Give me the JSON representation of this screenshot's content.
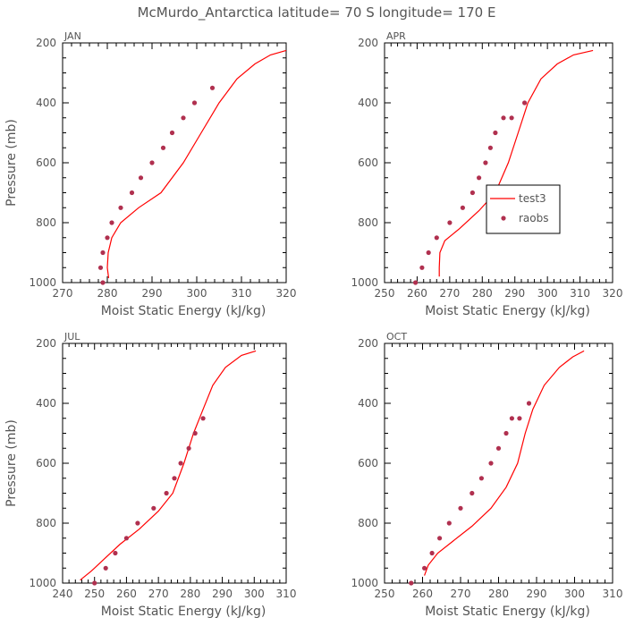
{
  "title": "McMurdo_Antarctica   latitude= 70 S longitude= 170 E",
  "legend": {
    "line_label": "test3",
    "dot_label": "raobs",
    "line_color": "#ff0000",
    "dot_color": "#b0304f"
  },
  "chart_data": [
    {
      "type": "line+scatter",
      "panel": "JAN",
      "xlabel": "Moist Static Energy (kJ/kg)",
      "ylabel": "Pressure (mb)",
      "xlim": [
        270,
        320
      ],
      "ylim": [
        200,
        1000
      ],
      "xticks": [
        270,
        280,
        290,
        300,
        310,
        320
      ],
      "yticks": [
        200,
        400,
        600,
        800,
        1000
      ],
      "series": [
        {
          "name": "test3",
          "kind": "line",
          "x": [
            280.3,
            280.0,
            280.2,
            281.0,
            283.0,
            287.0,
            292.0,
            297.0,
            301.0,
            305.0,
            309.0,
            313.0,
            316.5,
            320.0
          ],
          "y": [
            985,
            950,
            900,
            850,
            800,
            750,
            700,
            600,
            500,
            400,
            320,
            270,
            240,
            225
          ]
        },
        {
          "name": "raobs",
          "kind": "scatter",
          "x": [
            279.0,
            278.5,
            279.0,
            280.0,
            281.0,
            283.0,
            285.5,
            287.5,
            290.0,
            292.5,
            294.5,
            297.0,
            299.5,
            303.5
          ],
          "y": [
            1000,
            950,
            900,
            850,
            800,
            750,
            700,
            650,
            600,
            550,
            500,
            450,
            400,
            350
          ]
        }
      ]
    },
    {
      "type": "line+scatter",
      "panel": "APR",
      "xlabel": "Moist Static Energy (kJ/kg)",
      "ylabel": "",
      "xlim": [
        250,
        320
      ],
      "ylim": [
        200,
        1000
      ],
      "xticks": [
        250,
        260,
        270,
        280,
        290,
        300,
        310,
        320
      ],
      "yticks": [
        200,
        400,
        600,
        800,
        1000
      ],
      "series": [
        {
          "name": "test3",
          "kind": "line",
          "x": [
            266.8,
            266.8,
            267.0,
            268.5,
            273.0,
            279.0,
            284.0,
            288.0,
            291.0,
            294.0,
            298.0,
            303.0,
            308.0,
            314.0
          ],
          "y": [
            980,
            950,
            900,
            860,
            820,
            760,
            700,
            600,
            500,
            400,
            320,
            270,
            240,
            225
          ]
        },
        {
          "name": "raobs",
          "kind": "scatter",
          "x": [
            259.5,
            261.5,
            263.5,
            266.0,
            270.0,
            274.0,
            277.0,
            279.0,
            281.0,
            282.5,
            284.0,
            286.5,
            289.0,
            293.0
          ],
          "y": [
            1000,
            950,
            900,
            850,
            800,
            750,
            700,
            650,
            600,
            550,
            500,
            450,
            450,
            400
          ]
        }
      ]
    },
    {
      "type": "line+scatter",
      "panel": "JUL",
      "xlabel": "Moist Static Energy (kJ/kg)",
      "ylabel": "Pressure (mb)",
      "xlim": [
        240,
        310
      ],
      "ylim": [
        200,
        1000
      ],
      "xticks": [
        240,
        250,
        260,
        270,
        280,
        290,
        300,
        310
      ],
      "yticks": [
        200,
        400,
        600,
        800,
        1000
      ],
      "series": [
        {
          "name": "test3",
          "kind": "line",
          "x": [
            245.5,
            249.0,
            253.0,
            258.0,
            264.0,
            270.0,
            274.5,
            278.0,
            281.0,
            284.0,
            287.0,
            291.0,
            296.0,
            300.5
          ],
          "y": [
            990,
            960,
            920,
            870,
            820,
            760,
            700,
            600,
            500,
            420,
            340,
            280,
            240,
            225
          ]
        },
        {
          "name": "raobs",
          "kind": "scatter",
          "x": [
            250.0,
            253.5,
            256.5,
            260.0,
            263.5,
            268.5,
            272.5,
            275.0,
            277.0,
            279.5,
            281.5,
            284.0
          ],
          "y": [
            1000,
            950,
            900,
            850,
            800,
            750,
            700,
            650,
            600,
            550,
            500,
            450
          ]
        }
      ]
    },
    {
      "type": "line+scatter",
      "panel": "OCT",
      "xlabel": "Moist Static Energy (kJ/kg)",
      "ylabel": "",
      "xlim": [
        250,
        310
      ],
      "ylim": [
        200,
        1000
      ],
      "xticks": [
        250,
        260,
        270,
        280,
        290,
        300,
        310
      ],
      "yticks": [
        200,
        400,
        600,
        800,
        1000
      ],
      "series": [
        {
          "name": "test3",
          "kind": "line",
          "x": [
            260.5,
            261.5,
            264.0,
            268.0,
            273.0,
            278.0,
            282.0,
            285.0,
            287.0,
            289.0,
            292.0,
            296.0,
            299.5,
            302.5
          ],
          "y": [
            975,
            940,
            900,
            860,
            810,
            750,
            680,
            600,
            500,
            420,
            340,
            280,
            245,
            225
          ]
        },
        {
          "name": "raobs",
          "kind": "scatter",
          "x": [
            257.0,
            260.5,
            262.5,
            264.5,
            267.0,
            270.0,
            273.0,
            275.5,
            278.0,
            280.0,
            282.0,
            283.5,
            285.5,
            288.0
          ],
          "y": [
            1000,
            950,
            900,
            850,
            800,
            750,
            700,
            650,
            600,
            550,
            500,
            450,
            450,
            400
          ]
        }
      ]
    }
  ]
}
